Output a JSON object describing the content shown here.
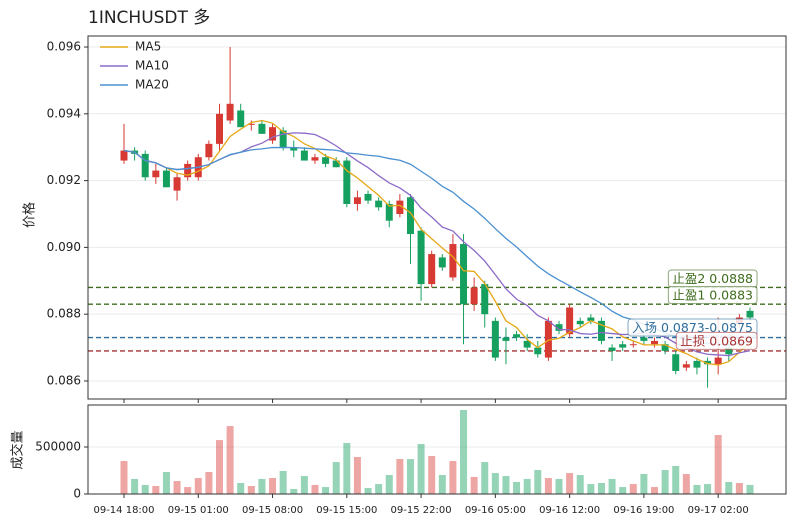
{
  "chart_data": {
    "type": "candlestick",
    "title": "1INCHUSDT  多",
    "ylabel": "价格",
    "up_color": "#d63a33",
    "down_color": "#15a05f",
    "categories": [
      "09-14 18:00",
      null,
      null,
      null,
      null,
      null,
      null,
      "09-15 01:00",
      null,
      null,
      null,
      null,
      null,
      null,
      "09-15 08:00",
      null,
      null,
      null,
      null,
      null,
      null,
      "09-15 15:00",
      null,
      null,
      null,
      null,
      null,
      null,
      "09-15 22:00",
      null,
      null,
      null,
      null,
      null,
      null,
      "09-16 05:00",
      null,
      null,
      null,
      null,
      null,
      null,
      "09-16 12:00",
      null,
      null,
      null,
      null,
      null,
      null,
      "09-16 19:00",
      null,
      null,
      null,
      null,
      null,
      null,
      "09-17 02:00",
      null,
      null,
      null
    ],
    "open": [
      0.0926,
      0.0929,
      0.0928,
      0.0921,
      0.0923,
      0.0917,
      0.0921,
      0.0921,
      0.0927,
      0.0931,
      0.0938,
      0.0941,
      0.0937,
      0.0937,
      0.0932,
      0.0935,
      0.093,
      0.0929,
      0.0926,
      0.0927,
      0.0926,
      0.0926,
      0.0913,
      0.0916,
      0.0914,
      0.0913,
      0.091,
      0.0915,
      0.0905,
      0.0889,
      0.0897,
      0.0891,
      0.0901,
      0.0883,
      0.0889,
      0.0878,
      0.0873,
      0.0874,
      0.0872,
      0.087,
      0.0867,
      0.0877,
      0.0874,
      0.0878,
      0.0879,
      0.0878,
      0.087,
      0.0871,
      0.0871,
      0.0873,
      0.0871,
      0.0871,
      0.0868,
      0.0864,
      0.0866,
      0.0866,
      0.0865,
      0.087,
      0.0877,
      0.0881
    ],
    "high": [
      0.0937,
      0.093,
      0.0929,
      0.0925,
      0.0924,
      0.0922,
      0.0926,
      0.0928,
      0.0932,
      0.0943,
      0.096,
      0.0943,
      0.0938,
      0.0938,
      0.0937,
      0.0936,
      0.0932,
      0.093,
      0.0928,
      0.0928,
      0.0927,
      0.0927,
      0.0917,
      0.0917,
      0.0915,
      0.0914,
      0.0916,
      0.0916,
      0.0906,
      0.0899,
      0.0898,
      0.0904,
      0.0904,
      0.0891,
      0.089,
      0.0879,
      0.0876,
      0.0875,
      0.0874,
      0.0872,
      0.0879,
      0.0878,
      0.0883,
      0.0879,
      0.088,
      0.0879,
      0.0871,
      0.0872,
      0.0872,
      0.0874,
      0.0873,
      0.0872,
      0.0869,
      0.0866,
      0.0867,
      0.0867,
      0.0879,
      0.0872,
      0.088,
      0.0882
    ],
    "low": [
      0.0925,
      0.0926,
      0.092,
      0.0919,
      0.0918,
      0.0914,
      0.092,
      0.092,
      0.0926,
      0.0929,
      0.0937,
      0.0936,
      0.0935,
      0.0934,
      0.0931,
      0.0929,
      0.0927,
      0.0926,
      0.0925,
      0.0924,
      0.0924,
      0.0912,
      0.0911,
      0.0913,
      0.0911,
      0.0906,
      0.0909,
      0.0895,
      0.0884,
      0.0888,
      0.0893,
      0.089,
      0.0871,
      0.0881,
      0.0876,
      0.0866,
      0.0865,
      0.0872,
      0.0869,
      0.0867,
      0.0866,
      0.0874,
      0.0873,
      0.0876,
      0.0877,
      0.0871,
      0.0866,
      0.0869,
      0.087,
      0.0871,
      0.087,
      0.0868,
      0.0862,
      0.0863,
      0.0862,
      0.0858,
      0.0862,
      0.0866,
      0.0876,
      0.0878
    ],
    "close": [
      0.0929,
      0.0928,
      0.0921,
      0.0923,
      0.0918,
      0.0921,
      0.0925,
      0.0927,
      0.0931,
      0.094,
      0.0943,
      0.0936,
      0.0937,
      0.0934,
      0.0936,
      0.093,
      0.0929,
      0.0926,
      0.0927,
      0.0925,
      0.0924,
      0.0913,
      0.0915,
      0.0914,
      0.0912,
      0.0908,
      0.0914,
      0.0904,
      0.0889,
      0.0898,
      0.0894,
      0.0901,
      0.0883,
      0.0888,
      0.088,
      0.0867,
      0.0872,
      0.0873,
      0.087,
      0.0868,
      0.0878,
      0.0875,
      0.0882,
      0.0877,
      0.0878,
      0.0872,
      0.0869,
      0.087,
      0.0871,
      0.0872,
      0.0872,
      0.0869,
      0.0863,
      0.0865,
      0.0864,
      0.0865,
      0.0867,
      0.0868,
      0.0879,
      0.0879
    ],
    "series": [
      {
        "name": "MA5",
        "color": "#e6a817",
        "values": [
          0.0929,
          0.09285,
          0.0926,
          0.09253,
          0.09238,
          0.09222,
          0.09216,
          0.09228,
          0.09244,
          0.09288,
          0.09332,
          0.09354,
          0.09374,
          0.0938,
          0.09372,
          0.09346,
          0.09332,
          0.0931,
          0.09296,
          0.09274,
          0.09262,
          0.0923,
          0.09208,
          0.09182,
          0.09156,
          0.09124,
          0.09126,
          0.09104,
          0.09054,
          0.09026,
          0.08998,
          0.08972,
          0.0893,
          0.08928,
          0.08892,
          0.08838,
          0.0878,
          0.0876,
          0.08724,
          0.087,
          0.08722,
          0.08728,
          0.08746,
          0.0876,
          0.0878,
          0.08768,
          0.08756,
          0.08732,
          0.0872,
          0.08708,
          0.08708,
          0.08708,
          0.08694,
          0.08682,
          0.08666,
          0.08652,
          0.08648,
          0.08658,
          0.08686,
          0.08716
        ]
      },
      {
        "name": "MA10",
        "color": "#8c6bc8",
        "values": [
          0.0929,
          0.09285,
          0.0926,
          0.09253,
          0.09238,
          0.09233,
          0.09236,
          0.0924,
          0.09248,
          0.09263,
          0.09277,
          0.09285,
          0.09301,
          0.09312,
          0.0933,
          0.09339,
          0.09343,
          0.09342,
          0.09338,
          0.09323,
          0.09304,
          0.09281,
          0.09259,
          0.09239,
          0.09215,
          0.09193,
          0.09178,
          0.09156,
          0.09118,
          0.09091,
          0.09061,
          0.09049,
          0.09017,
          0.08991,
          0.08959,
          0.08918,
          0.08876,
          0.08845,
          0.08826,
          0.08796,
          0.0878,
          0.08754,
          0.08753,
          0.08742,
          0.0874,
          0.08745,
          0.08742,
          0.08739,
          0.0874,
          0.08744,
          0.08738,
          0.08732,
          0.08713,
          0.08701,
          0.08687,
          0.0868,
          0.08678,
          0.08676,
          0.08684,
          0.08691
        ]
      },
      {
        "name": "MA20",
        "color": "#4a90d0",
        "values": [
          0.0929,
          0.09285,
          0.0926,
          0.09253,
          0.09238,
          0.09233,
          0.09236,
          0.0924,
          0.09248,
          0.09263,
          0.09278,
          0.09285,
          0.09292,
          0.09295,
          0.09299,
          0.09299,
          0.09299,
          0.09297,
          0.09295,
          0.09293,
          0.09291,
          0.09283,
          0.0928,
          0.09276,
          0.09273,
          0.09266,
          0.09261,
          0.09249,
          0.09228,
          0.09207,
          0.09183,
          0.09165,
          0.09138,
          0.09115,
          0.09087,
          0.09056,
          0.09027,
          0.09001,
          0.08972,
          0.08944,
          0.08921,
          0.08902,
          0.08885,
          0.08867,
          0.0885,
          0.08832,
          0.08809,
          0.08792,
          0.08783,
          0.0877,
          0.08759,
          0.08743,
          0.08733,
          0.08722,
          0.08714,
          0.08713,
          0.0871,
          0.08708,
          0.08712,
          0.08718
        ]
      }
    ],
    "levels": [
      {
        "label": "止盈2 0.0888",
        "value": 0.0888,
        "color": "#3f6d1e"
      },
      {
        "label": "止盈1 0.0883",
        "value": 0.0883,
        "color": "#3f6d1e"
      },
      {
        "label": "入场 0.0873-0.0875",
        "value": 0.0873,
        "color": "#2e6e9e"
      },
      {
        "label": "止损 0.0869",
        "value": 0.0869,
        "color": "#a83232"
      }
    ],
    "ylim": [
      0.08546,
      0.09633
    ],
    "yticks": [
      0.086,
      0.088,
      {
        "value": 0.09,
        "label": "0.090"
      },
      0.092,
      0.094,
      0.096
    ],
    "grid": true,
    "legend": "upper left",
    "volume": {
      "label": "成交量",
      "values": [
        351000,
        160000,
        96000,
        85000,
        234000,
        138000,
        74000,
        170000,
        234000,
        574000,
        723000,
        117000,
        85000,
        160000,
        170000,
        245000,
        53000,
        191000,
        96000,
        74000,
        340000,
        543000,
        394000,
        64000,
        106000,
        202000,
        372000,
        372000,
        532000,
        404000,
        202000,
        351000,
        894000,
        181000,
        340000,
        223000,
        191000,
        128000,
        160000,
        255000,
        170000,
        160000,
        223000,
        202000,
        106000,
        117000,
        160000,
        74000,
        106000,
        213000,
        74000,
        255000,
        298000,
        213000,
        96000,
        106000,
        628000,
        128000,
        117000,
        96000
      ],
      "ylim": [
        0,
        947000
      ],
      "yticks": [
        0,
        500000
      ]
    }
  }
}
